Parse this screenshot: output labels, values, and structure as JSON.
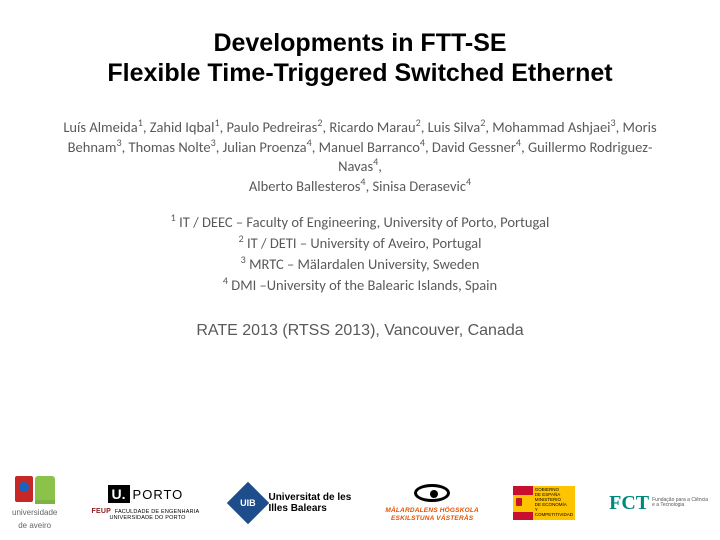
{
  "title": {
    "line1": "Developments in FTT-SE",
    "line2": "Flexible Time-Triggered Switched Ethernet"
  },
  "authors_html": "Luís Almeida<sup>1</sup>, Zahid Iqbal<sup>1</sup>, Paulo Pedreiras<sup>2</sup>, Ricardo Marau<sup>2</sup>, Luis Silva<sup>2</sup>, Mohammad Ashjaei<sup>3</sup>, Moris Behnam<sup>3</sup>, Thomas Nolte<sup>3</sup>, Julian Proenza<sup>4</sup>, Manuel Barranco<sup>4</sup>, David Gessner<sup>4</sup>, Guillermo Rodriguez-Navas<sup>4</sup>,<br>Alberto Ballesteros<sup>4</sup>, Sinisa Derasevic<sup>4</sup>",
  "affiliations": [
    {
      "num": "1",
      "text": "IT / DEEC – Faculty of Engineering, University of Porto, Portugal"
    },
    {
      "num": "2",
      "text": "IT / DETI – University of Aveiro, Portugal"
    },
    {
      "num": "3",
      "text": "MRTC – Mälardalen University, Sweden"
    },
    {
      "num": "4",
      "text": "DMI –University of the Balearic Islands, Spain"
    }
  ],
  "venue": "RATE 2013 (RTSS 2013), Vancouver, Canada",
  "logos": {
    "aveiro_label1": "universidade",
    "aveiro_label2": "de aveiro",
    "porto_u": "U.",
    "porto_name": "PORTO",
    "porto_feup": "FEUP",
    "porto_sub1": "FACULDADE DE ENGENHARIA",
    "porto_sub2": "UNIVERSIDADE DO PORTO",
    "uib_mark": "UIB",
    "uib_line1": "Universitat de les",
    "uib_line2": "Illes Balears",
    "mdh_line1": "MÄLARDALENS HÖGSKOLA",
    "mdh_line2": "ESKILSTUNA VÄSTERÅS",
    "gob_l1": "GOBIERNO",
    "gob_l2": "DE ESPAÑA",
    "gob_l3": "MINISTERIO",
    "gob_l4": "DE ECONOMÍA",
    "gob_l5": "Y COMPETITIVIDAD",
    "fct_mark": "FCT",
    "fct_l1": "Fundação para a Ciência",
    "fct_l2": "e a Tecnologia"
  },
  "colors": {
    "text_body": "#595959",
    "title": "#000000",
    "background": "#ffffff"
  }
}
